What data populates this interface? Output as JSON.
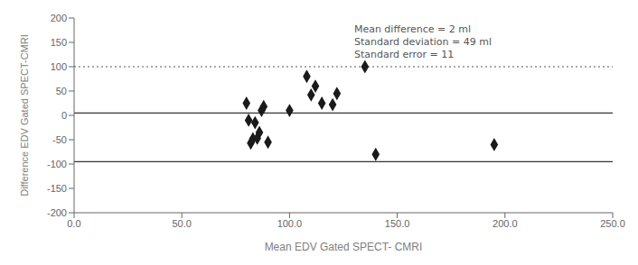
{
  "chart_data": {
    "type": "scatter",
    "xlabel": "Mean EDV Gated SPECT- CMRI",
    "ylabel": "Difference EDV Gated SPECT-CMRI",
    "x": [
      80,
      81,
      82,
      83,
      84,
      85,
      86,
      87,
      88,
      90,
      100,
      108,
      110,
      112,
      115,
      120,
      122,
      135,
      140,
      195
    ],
    "values": [
      25,
      -10,
      -57,
      -48,
      -15,
      -47,
      -35,
      10,
      18,
      -55,
      10,
      80,
      42,
      60,
      25,
      22,
      45,
      100,
      -80,
      -60
    ],
    "color": "#1a1a1a",
    "marker": "diamond",
    "xlim": [
      0.0,
      250.0
    ],
    "ylim": [
      -200,
      200
    ],
    "xticks": [
      {
        "value": 0,
        "label": "0.0"
      },
      {
        "value": 50,
        "label": "50.0"
      },
      {
        "value": 100,
        "label": "100.0"
      },
      {
        "value": 150,
        "label": "150.0"
      },
      {
        "value": 200,
        "label": "200.0"
      },
      {
        "value": 250,
        "label": "250.0"
      }
    ],
    "yticks": [
      -200,
      -150,
      -100,
      -50,
      0,
      50,
      100,
      150,
      200
    ],
    "reference_lines": [
      {
        "value": 5,
        "color": "#000000",
        "line_style": "solid"
      },
      {
        "value": 100,
        "color": "#555555",
        "line_style": "dotted"
      },
      {
        "value": -95,
        "color": "#000000",
        "line_style": "solid"
      }
    ],
    "annotation": "Mean difference = 2 ml\nStandard deviation = 49 ml\nStandard error = 11",
    "grid": false
  }
}
